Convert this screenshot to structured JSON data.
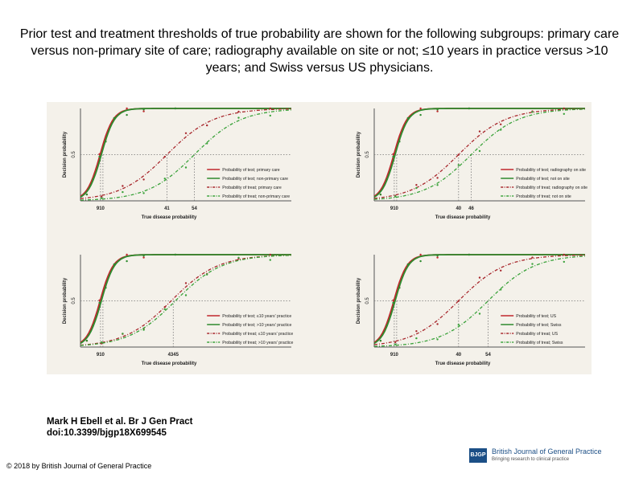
{
  "slide": {
    "title": "Prior test and treatment thresholds of true probability are shown for the following subgroups: primary care versus non-primary site of care; radiography available on site or not; ≤10 years in practice versus >10 years; and Swiss versus US physicians.",
    "citation_line1": "Mark H Ebell et al. Br J Gen Pract",
    "citation_line2": "doi:10.3399/bjgp18X699545",
    "copyright": "© 2018 by British Journal of General Practice",
    "journal_name": "British Journal of General Practice",
    "journal_tagline": "Bringing research to clinical practice",
    "journal_mark": "BJGP"
  },
  "colors": {
    "test_a": "#c0282d",
    "test_b": "#2e8b2e",
    "treat_a": "#a8282d",
    "treat_b": "#3aa23a",
    "panel_bg": "#f4f1ea",
    "threshold_line": "#777777"
  },
  "chart_data": [
    {
      "type": "line",
      "xlabel": "True disease probability",
      "ylabel": "Decision probability",
      "ytick": "0.5",
      "threshold_labels": [
        "910",
        "41",
        "54"
      ],
      "threshold_x": [
        9.5,
        41,
        54
      ],
      "series": [
        {
          "name": "Probability of test; primary care",
          "style": "solid",
          "color_key": "test_a",
          "midpoint": 9.3,
          "points_y": [
            0.04,
            0.55,
            0.93,
            1.0,
            1.0
          ]
        },
        {
          "name": "Probability of test; non-primary care",
          "style": "solid",
          "color_key": "test_b",
          "midpoint": 9.9,
          "points_y": [
            0.05,
            0.5,
            0.91,
            1.0,
            1.0
          ]
        },
        {
          "name": "Probability of treat; primary care",
          "style": "dashdot",
          "color_key": "treat_a",
          "midpoint": 41,
          "points_y": [
            0.02,
            0.15,
            0.5,
            0.85,
            0.98
          ]
        },
        {
          "name": "Probability of treat; non-primary care",
          "style": "dashdot",
          "color_key": "treat_b",
          "midpoint": 54,
          "points_y": [
            0.01,
            0.08,
            0.35,
            0.75,
            0.95
          ]
        }
      ],
      "xlim": [
        0,
        100
      ],
      "ylim": [
        0,
        1
      ]
    },
    {
      "type": "line",
      "xlabel": "True disease probability",
      "ylabel": "Decision probability",
      "ytick": "0.5",
      "threshold_labels": [
        "910",
        "40",
        "46"
      ],
      "threshold_x": [
        9.5,
        40,
        46
      ],
      "series": [
        {
          "name": "Probability of test; radiography on site",
          "style": "solid",
          "color_key": "test_a",
          "midpoint": 9.3,
          "points_y": [
            0.04,
            0.55,
            0.93,
            1.0,
            1.0
          ]
        },
        {
          "name": "Probability of test; not on site",
          "style": "solid",
          "color_key": "test_b",
          "midpoint": 9.9,
          "points_y": [
            0.05,
            0.5,
            0.91,
            1.0,
            1.0
          ]
        },
        {
          "name": "Probability of treat; radiography on site",
          "style": "dashdot",
          "color_key": "treat_a",
          "midpoint": 40,
          "points_y": [
            0.02,
            0.16,
            0.52,
            0.86,
            0.98
          ]
        },
        {
          "name": "Probability of treat; not on site",
          "style": "dashdot",
          "color_key": "treat_b",
          "midpoint": 46,
          "points_y": [
            0.01,
            0.12,
            0.45,
            0.82,
            0.97
          ]
        }
      ],
      "xlim": [
        0,
        100
      ],
      "ylim": [
        0,
        1
      ]
    },
    {
      "type": "line",
      "xlabel": "True disease probability",
      "ylabel": "Decision probability",
      "ytick": "0.5",
      "threshold_labels": [
        "910",
        "4345"
      ],
      "threshold_x": [
        9.5,
        44
      ],
      "series": [
        {
          "name": "Probability of test; ≤10 years' practice",
          "style": "solid",
          "color_key": "test_a",
          "midpoint": 9.3,
          "points_y": [
            0.04,
            0.55,
            0.93,
            1.0,
            1.0
          ]
        },
        {
          "name": "Probability of test; >10 years' practice",
          "style": "solid",
          "color_key": "test_b",
          "midpoint": 9.9,
          "points_y": [
            0.05,
            0.5,
            0.91,
            1.0,
            1.0
          ]
        },
        {
          "name": "Probability of treat; ≤10 years' practice",
          "style": "dashdot",
          "color_key": "treat_a",
          "midpoint": 43,
          "points_y": [
            0.02,
            0.14,
            0.48,
            0.84,
            0.98
          ]
        },
        {
          "name": "Probability of treat; >10 years' practice",
          "style": "dashdot",
          "color_key": "treat_b",
          "midpoint": 45,
          "points_y": [
            0.02,
            0.13,
            0.46,
            0.83,
            0.97
          ]
        }
      ],
      "xlim": [
        0,
        100
      ],
      "ylim": [
        0,
        1
      ]
    },
    {
      "type": "line",
      "xlabel": "True disease probability",
      "ylabel": "Decision probability",
      "ytick": "0.5",
      "threshold_labels": [
        "910",
        "40",
        "54"
      ],
      "threshold_x": [
        9.5,
        40,
        54
      ],
      "series": [
        {
          "name": "Probability of test; US",
          "style": "solid",
          "color_key": "test_a",
          "midpoint": 9.3,
          "points_y": [
            0.04,
            0.55,
            0.93,
            1.0,
            1.0
          ]
        },
        {
          "name": "Probability of test; Swiss",
          "style": "solid",
          "color_key": "test_b",
          "midpoint": 9.9,
          "points_y": [
            0.05,
            0.5,
            0.91,
            1.0,
            1.0
          ]
        },
        {
          "name": "Probability of treat; US",
          "style": "dashdot",
          "color_key": "treat_a",
          "midpoint": 40,
          "points_y": [
            0.02,
            0.16,
            0.52,
            0.86,
            0.98
          ]
        },
        {
          "name": "Probability of treat; Swiss",
          "style": "dashdot",
          "color_key": "treat_b",
          "midpoint": 54,
          "points_y": [
            0.01,
            0.08,
            0.35,
            0.75,
            0.95
          ]
        }
      ],
      "xlim": [
        0,
        100
      ],
      "ylim": [
        0,
        1
      ]
    }
  ]
}
